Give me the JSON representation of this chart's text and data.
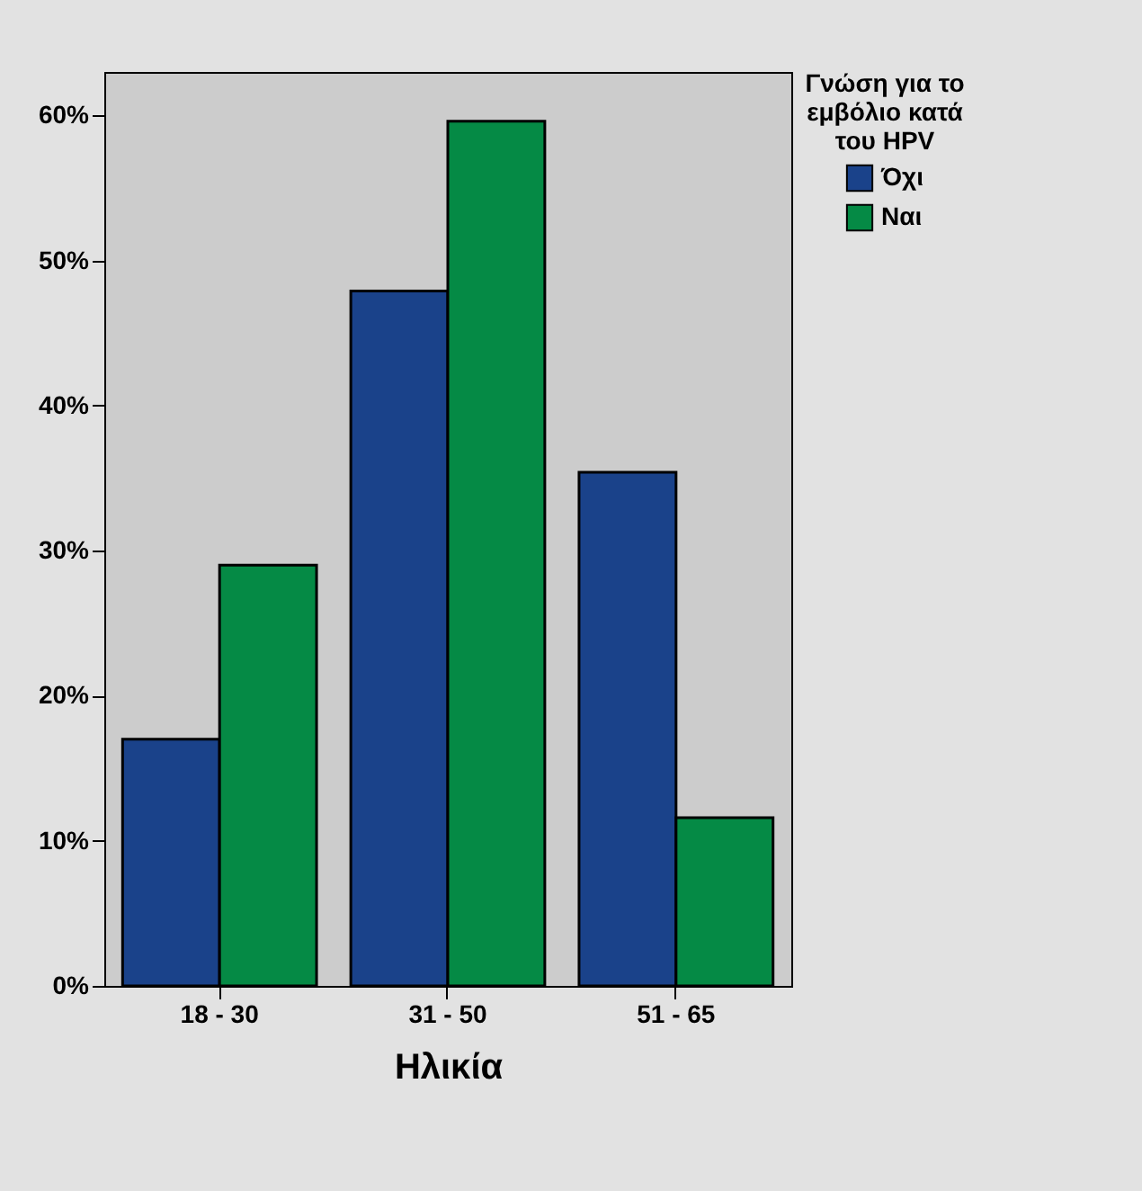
{
  "chart_data": {
    "type": "bar",
    "xlabel": "Ηλικία",
    "legend_title": "Γνώση για το εμβόλιο κατά του HPV",
    "categories": [
      "18 - 30",
      "31 - 50",
      "51 - 65"
    ],
    "series": [
      {
        "name": "Όχι",
        "color": "#1a428a",
        "values": [
          17,
          47.9,
          35.4
        ]
      },
      {
        "name": "Ναι",
        "color": "#058a45",
        "values": [
          29,
          59.6,
          11.6
        ]
      }
    ],
    "ylim": [
      0,
      63
    ],
    "yticks": [
      {
        "value": 0,
        "label": "0%"
      },
      {
        "value": 10,
        "label": "10%"
      },
      {
        "value": 20,
        "label": "20%"
      },
      {
        "value": 30,
        "label": "30%"
      },
      {
        "value": 40,
        "label": "40%"
      },
      {
        "value": 50,
        "label": "50%"
      },
      {
        "value": 60,
        "label": "60%"
      }
    ],
    "grid": false,
    "legend": "right"
  }
}
